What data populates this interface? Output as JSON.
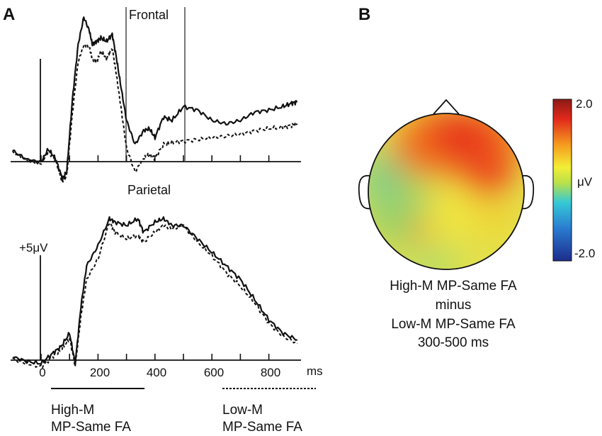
{
  "panel_a": {
    "label": "A",
    "frontal_title": "Frontal",
    "parietal_title": "Parietal",
    "scale_label": "+5μV",
    "x_unit": "ms",
    "ticks": [
      "0",
      "200",
      "400",
      "600",
      "800"
    ],
    "legend": {
      "solid_line1": "High-M",
      "solid_line2": "MP-Same FA",
      "dashed_line1": "Low-M",
      "dashed_line2": "MP-Same FA"
    }
  },
  "panel_b": {
    "label": "B",
    "colorbar_max": "2.0",
    "colorbar_mid": "μV",
    "colorbar_min": "-2.0",
    "caption": [
      "High-M MP-Same FA",
      "minus",
      "Low-M MP-Same FA",
      "300-500 ms"
    ]
  },
  "chart_data": {
    "type": "line",
    "x_unit": "ms",
    "x_ticks": [
      0,
      200,
      400,
      600,
      800
    ],
    "xlim": [
      -100,
      900
    ],
    "analysis_window_ms": [
      300,
      500
    ],
    "series": [
      {
        "name": "High-M MP-Same FA (Frontal)",
        "style": "solid",
        "x": [
          -100,
          -50,
          0,
          25,
          50,
          75,
          90,
          110,
          130,
          150,
          170,
          180,
          195,
          210,
          230,
          250,
          265,
          280,
          300,
          330,
          360,
          380,
          400,
          430,
          460,
          500,
          550,
          600,
          650,
          700,
          750,
          800,
          850,
          880,
          900
        ],
        "y": [
          1.6,
          0.3,
          -0.1,
          1.8,
          0.5,
          -2.5,
          -1.5,
          9,
          17,
          21,
          19,
          17,
          17.5,
          18,
          17.5,
          18.5,
          15,
          11,
          6,
          2.5,
          4.5,
          4.8,
          3.5,
          6.5,
          6,
          8,
          7.5,
          6,
          5.5,
          6,
          7.2,
          7.5,
          8,
          8.5,
          8.7
        ]
      },
      {
        "name": "Low-M MP-Same FA (Frontal)",
        "style": "dashed",
        "x": [
          -100,
          -50,
          0,
          25,
          50,
          75,
          90,
          110,
          130,
          150,
          170,
          180,
          195,
          210,
          230,
          250,
          265,
          280,
          300,
          330,
          360,
          380,
          400,
          430,
          460,
          500,
          550,
          600,
          650,
          700,
          750,
          800,
          850,
          880,
          900
        ],
        "y": [
          1.4,
          0.2,
          -0.3,
          1.5,
          0.3,
          -3,
          -2,
          7,
          14.5,
          17,
          16.5,
          15,
          14.5,
          16,
          15,
          16.5,
          12.5,
          8,
          2,
          -1.5,
          0.5,
          1,
          0.5,
          2.5,
          2.8,
          3,
          3.2,
          3.5,
          3.7,
          4,
          4.5,
          4.8,
          5,
          5.3,
          5.5
        ]
      },
      {
        "name": "High-M MP-Same FA (Parietal)",
        "style": "solid",
        "x": [
          -100,
          -50,
          0,
          40,
          70,
          100,
          120,
          140,
          160,
          200,
          240,
          260,
          300,
          340,
          360,
          400,
          430,
          460,
          500,
          550,
          600,
          650,
          700,
          750,
          800,
          850,
          900
        ],
        "y": [
          0.5,
          -0.2,
          -0.5,
          1,
          2,
          4,
          -0.5,
          8,
          14,
          17,
          21,
          20.5,
          20,
          21,
          19,
          20.5,
          21,
          20,
          20,
          18,
          16,
          14,
          12,
          9,
          6,
          4,
          3
        ]
      },
      {
        "name": "Low-M MP-Same FA (Parietal)",
        "style": "dashed",
        "x": [
          -100,
          -50,
          0,
          40,
          70,
          100,
          120,
          140,
          160,
          200,
          240,
          260,
          300,
          340,
          360,
          400,
          430,
          460,
          500,
          550,
          600,
          650,
          700,
          750,
          800,
          850,
          900
        ],
        "y": [
          0.2,
          -0.5,
          -1,
          0.5,
          1.5,
          3.2,
          -0.8,
          6.5,
          12,
          15,
          20.5,
          19,
          18,
          18.5,
          17.5,
          19,
          20,
          19.5,
          20,
          17.5,
          15.5,
          13,
          11,
          8.5,
          5.5,
          3.5,
          2.5
        ]
      }
    ]
  }
}
